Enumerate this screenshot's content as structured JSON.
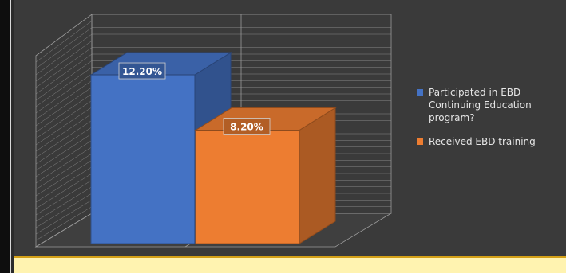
{
  "chart_data": {
    "type": "bar",
    "categories": [
      "Participated in EBD Continuing Education program?",
      "Received EBD training"
    ],
    "values": [
      12.2,
      8.2
    ],
    "value_labels": [
      "12.20%",
      "8.20%"
    ],
    "ylim": [
      0,
      16
    ],
    "grid": true,
    "legend_position": "right",
    "legend": [
      {
        "lines": [
          "Participated in EBD",
          "Continuing Education",
          "program?"
        ]
      },
      {
        "lines": [
          "Received EBD training"
        ]
      }
    ]
  },
  "colors": {
    "series_1": "#4472c4",
    "series_2": "#ed7d31",
    "background": "#3a3a3a",
    "gridline": "#9a9a9a"
  }
}
